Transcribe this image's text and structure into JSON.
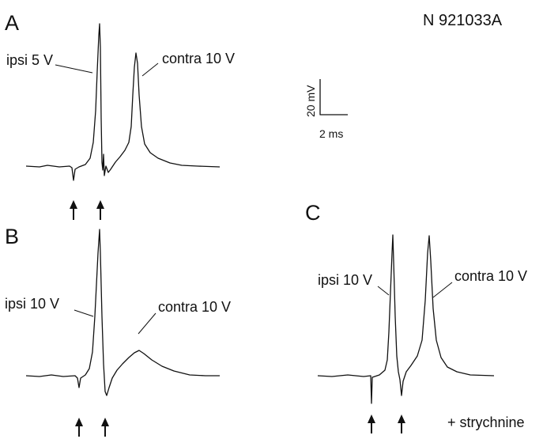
{
  "header": {
    "id": "N 921033A"
  },
  "scale_bar": {
    "vertical": "20 mV",
    "horizontal": "2 ms"
  },
  "panels": [
    {
      "label": "A",
      "ipsi": "ipsi 5 V",
      "contra": "contra 10 V"
    },
    {
      "label": "B",
      "ipsi": "ipsi 10 V",
      "contra": "contra 10 V"
    },
    {
      "label": "C",
      "ipsi": "ipsi 10 V",
      "contra": "contra 10 V",
      "note": "+ strychnine"
    }
  ]
}
